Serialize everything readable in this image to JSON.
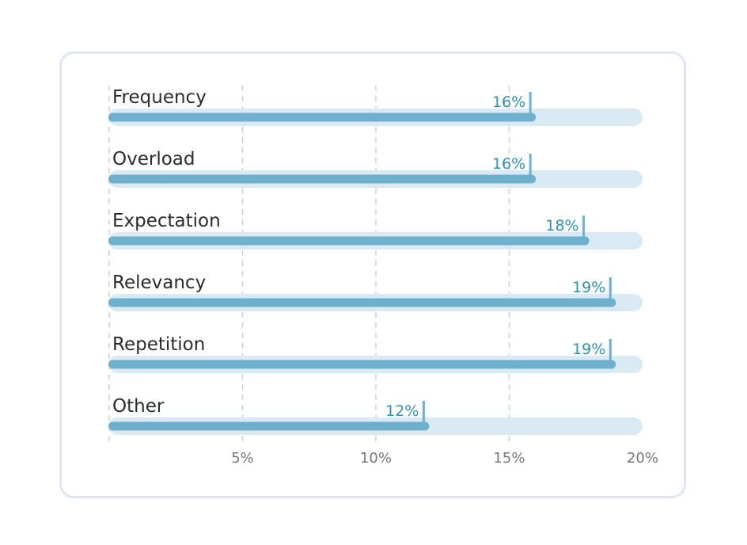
{
  "colors": {
    "bar": "#6fb0cf",
    "track": "#d9eaf4",
    "value_label": "#2f8fb3",
    "grid": "#c9ced8"
  },
  "chart_data": {
    "type": "bar",
    "orientation": "horizontal",
    "categories": [
      "Frequency",
      "Overload",
      "Expectation",
      "Relevancy",
      "Repetition",
      "Other"
    ],
    "values": [
      16,
      16,
      18,
      19,
      19,
      12
    ],
    "value_labels": [
      "16%",
      "16%",
      "18%",
      "19%",
      "19%",
      "12%"
    ],
    "xlim": [
      0,
      20
    ],
    "x_ticks": [
      5,
      10,
      15,
      20
    ],
    "x_tick_labels": [
      "5%",
      "10%",
      "15%",
      "20%"
    ],
    "grid": true,
    "title": "",
    "xlabel": "",
    "ylabel": ""
  }
}
